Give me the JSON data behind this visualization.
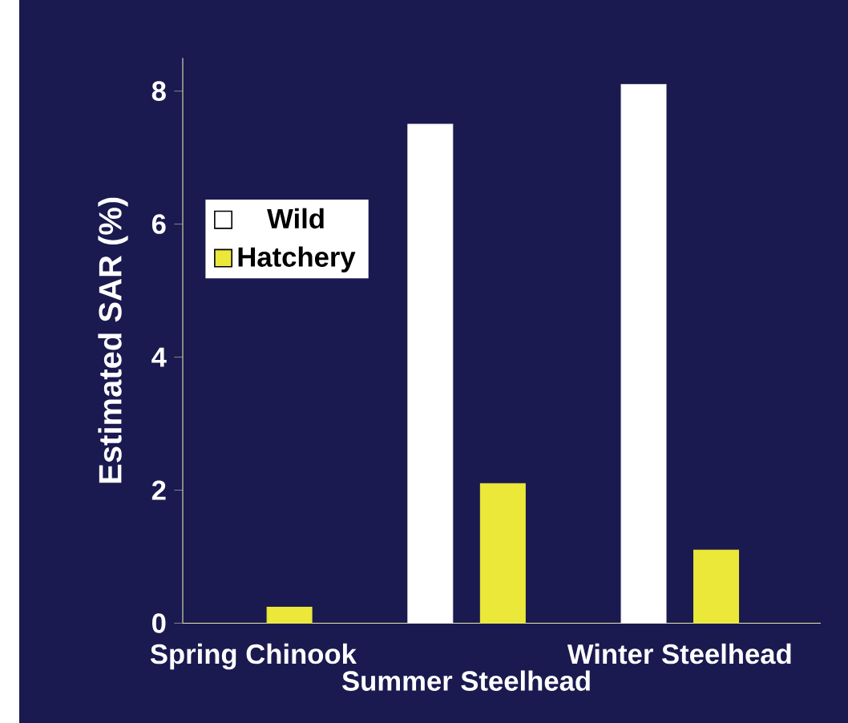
{
  "chart_data": {
    "type": "bar",
    "ylabel": "Estimated SAR (%)",
    "categories": [
      "Spring Chinook",
      "Summer Steelhead",
      "Winter Steelhead"
    ],
    "series": [
      {
        "name": "Wild",
        "color": "#ffffff",
        "values": [
          null,
          7.5,
          8.1
        ]
      },
      {
        "name": "Hatchery",
        "color": "#ece83a",
        "values": [
          0.24,
          2.1,
          1.1
        ]
      }
    ],
    "ylim": [
      0,
      8.5
    ],
    "yticks": [
      0,
      2,
      4,
      6,
      8
    ],
    "legend": "top left"
  }
}
